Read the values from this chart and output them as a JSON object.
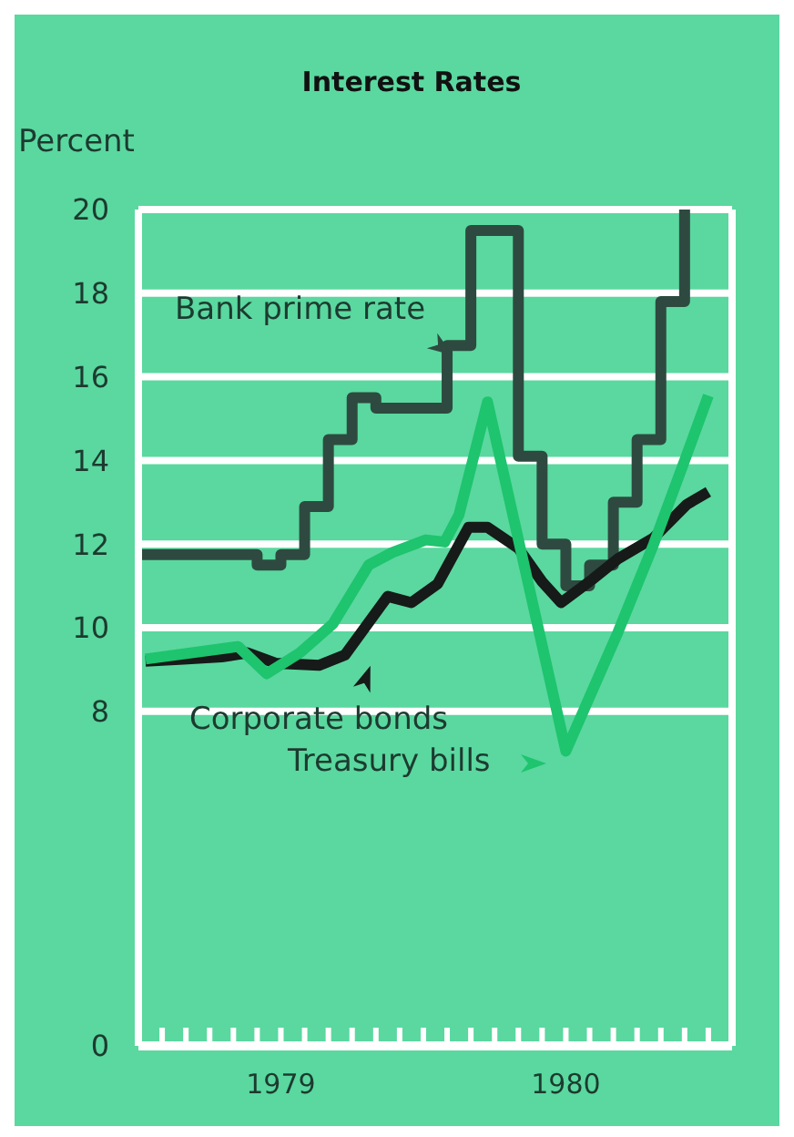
{
  "chart_data": {
    "type": "line",
    "title": "Interest Rates",
    "ylabel": "Percent",
    "xlim": [
      "1979-01",
      "1981-02"
    ],
    "xticks": [
      {
        "value": "1979-01",
        "label": null
      },
      {
        "value": "1979-02",
        "label": null
      },
      {
        "value": "1979-03",
        "label": null
      },
      {
        "value": "1979-04",
        "label": null
      },
      {
        "value": "1979-05",
        "label": null
      },
      {
        "value": "1979-06",
        "label": null
      },
      {
        "value": "1979-07",
        "label": "1979"
      },
      {
        "value": "1979-08",
        "label": null
      },
      {
        "value": "1979-09",
        "label": null
      },
      {
        "value": "1979-10",
        "label": null
      },
      {
        "value": "1979-11",
        "label": null
      },
      {
        "value": "1979-12",
        "label": null
      },
      {
        "value": "1980-01",
        "label": null
      },
      {
        "value": "1980-02",
        "label": null
      },
      {
        "value": "1980-03",
        "label": null
      },
      {
        "value": "1980-04",
        "label": null
      },
      {
        "value": "1980-05",
        "label": null
      },
      {
        "value": "1980-06",
        "label": null
      },
      {
        "value": "1980-07",
        "label": "1980"
      },
      {
        "value": "1980-08",
        "label": null
      },
      {
        "value": "1980-09",
        "label": null
      },
      {
        "value": "1980-10",
        "label": null
      },
      {
        "value": "1980-11",
        "label": null
      },
      {
        "value": "1980-12",
        "label": null
      },
      {
        "value": "1981-01",
        "label": null
      }
    ],
    "ylim": [
      0,
      20
    ],
    "yticks": [
      0,
      8,
      10,
      12,
      14,
      16,
      18,
      20
    ],
    "grid": "y",
    "marker": "none",
    "line_style": "solid",
    "series": [
      {
        "name": "Bank prime rate",
        "type": "step",
        "color": "#2e4a40",
        "x": [
          "1979-01",
          "1979-02",
          "1979-03",
          "1979-04",
          "1979-05",
          "1979-06",
          "1979-07",
          "1979-08",
          "1979-09",
          "1979-10",
          "1979-11",
          "1979-12",
          "1980-01",
          "1980-02",
          "1980-03",
          "1980-04",
          "1980-05",
          "1980-06",
          "1980-07",
          "1980-08",
          "1980-09",
          "1980-10",
          "1980-11",
          "1980-12"
        ],
        "values": [
          11.75,
          11.75,
          11.75,
          11.75,
          11.75,
          11.5,
          11.75,
          12.9,
          14.5,
          15.5,
          15.25,
          15.25,
          15.25,
          16.75,
          19.5,
          19.5,
          14.1,
          12,
          11,
          11.5,
          13,
          14.5,
          17.8,
          20
        ]
      },
      {
        "name": "Corporate bonds",
        "color": "#161a18",
        "x": [
          "1979-01-10",
          "1979-02-28",
          "1979-04-16",
          "1979-05-19",
          "1979-06-25",
          "1979-08-19",
          "1979-09-22",
          "1979-11-16",
          "1979-12-16",
          "1980-01-19",
          "1980-02-28",
          "1980-03-22",
          "1980-05-01",
          "1980-06-01",
          "1980-06-25",
          "1980-08-04",
          "1980-09-07",
          "1980-10-22",
          "1980-12-04",
          "1981-01-01"
        ],
        "values": [
          9.2,
          9.25,
          9.3,
          9.4,
          9.15,
          9.1,
          9.35,
          10.75,
          10.6,
          11.05,
          12.4,
          12.4,
          11.9,
          11.1,
          10.6,
          11.15,
          11.65,
          12.15,
          12.95,
          13.25
        ]
      },
      {
        "name": "Treasury bills",
        "color": "#1ec46e",
        "x": [
          "1979-01-10",
          "1979-05-07",
          "1979-06-13",
          "1979-07-25",
          "1979-09-07",
          "1979-10-22",
          "1979-11-22",
          "1980-01-04",
          "1980-01-28",
          "1980-02-16",
          "1980-03-22",
          "1980-07-01",
          "1980-09-07",
          "1980-10-22",
          "1980-12-04",
          "1981-01-01"
        ],
        "values": [
          9.25,
          9.55,
          8.9,
          9.4,
          10.1,
          11.5,
          11.8,
          12.1,
          12.05,
          12.7,
          15.4,
          7.05,
          9.9,
          12.0,
          14.15,
          15.55
        ]
      }
    ]
  }
}
